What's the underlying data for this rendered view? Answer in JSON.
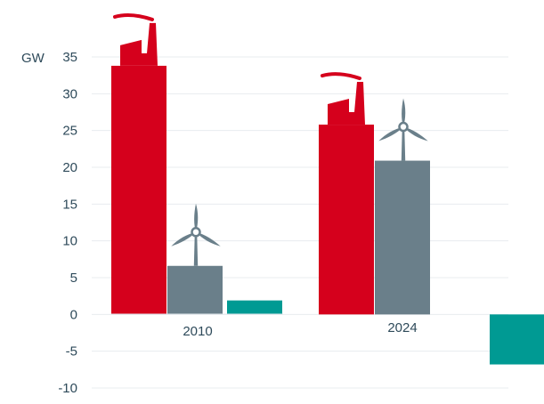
{
  "chart_data": {
    "type": "bar",
    "ylabel": "GW",
    "ylim": [
      -10,
      35
    ],
    "yticks": [
      35,
      30,
      25,
      20,
      15,
      10,
      5,
      0,
      -5,
      -10
    ],
    "categories": [
      "2010",
      "2024"
    ],
    "series": [
      {
        "values": [
          33.8,
          25.8
        ],
        "color": "#d5001c",
        "icon": "factory-icon"
      },
      {
        "values": [
          6.6,
          20.9
        ],
        "color": "#6a7f8a",
        "icon": "wind-turbine-icon"
      },
      {
        "values": [
          1.9,
          -6.8
        ],
        "color": "#009a93",
        "icon": ""
      }
    ],
    "grid": true,
    "legend": "none"
  }
}
